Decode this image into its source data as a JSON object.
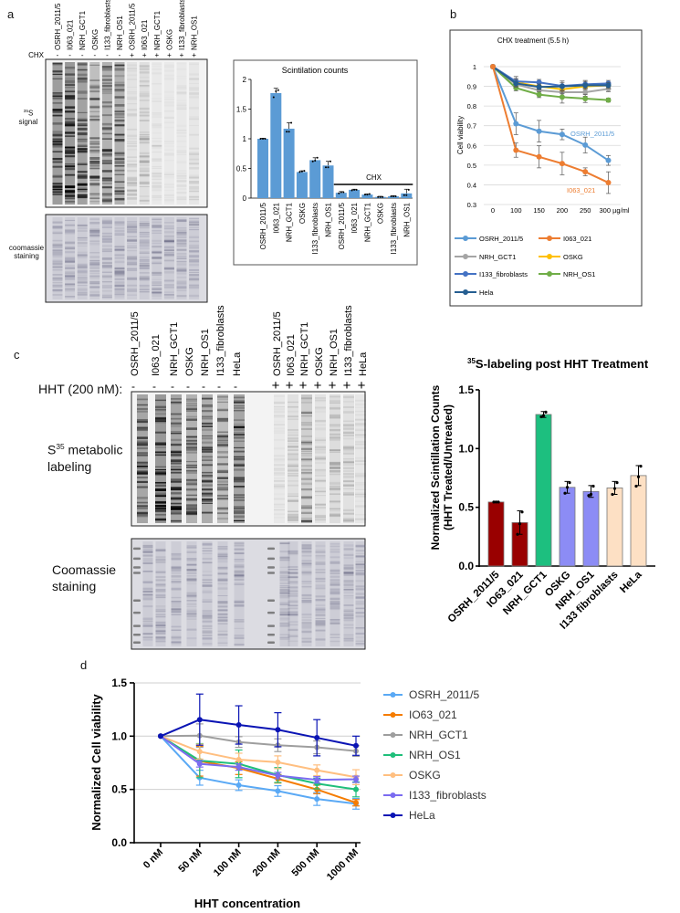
{
  "panel_labels": {
    "a": "a",
    "b": "b",
    "c": "c",
    "d": "d"
  },
  "panel_a": {
    "gel": {
      "lanes": [
        "OSRH_2011/5",
        "I063_021",
        "NRH_GCT1",
        "OSKG",
        "I133_fibroblasts",
        "NRH_OS1",
        "OSRH_2011/5",
        "I063_021",
        "NRH_GCT1",
        "OSKG",
        "I133_fibroblasts",
        "NRH_OS1"
      ],
      "treatment_label": "CHX",
      "treatment_signs": [
        "-",
        "-",
        "-",
        "-",
        "-",
        "-",
        "+",
        "+",
        "+",
        "+",
        "+",
        "+"
      ],
      "lane_signal_intensity": [
        0.95,
        1,
        0.9,
        0.55,
        0.7,
        0.7,
        0.12,
        0.18,
        0.06,
        0.04,
        0.05,
        0.08
      ],
      "signal_label_sup": "35",
      "signal_label_main": "S",
      "signal_label_sub": "signal",
      "staining_label_1": "coomassie",
      "staining_label_2": "staining"
    }
  },
  "panel_c": {
    "gel": {
      "treatment_label": "HHT (200 nM):",
      "lanes": [
        "OSRH_2011/5",
        "I063_021",
        "NRH_GCT1",
        "OSKG",
        "NRH_OS1",
        "I133_fibroblasts",
        "HeLa",
        "OSRH_2011/5",
        "I063_021",
        "NRH_GCT1",
        "OSKG",
        "NRH_OS1",
        "I133_fibroblasts",
        "HeLa"
      ],
      "treatment_signs": [
        "-",
        "-",
        "-",
        "-",
        "-",
        "-",
        "-",
        "+",
        "+",
        "+",
        "+",
        "+",
        "+",
        "+"
      ],
      "lane_signal_intensity": [
        0.85,
        1,
        0.85,
        0.7,
        0.75,
        0.55,
        0.85,
        0.06,
        0.15,
        0.35,
        0.12,
        0.2,
        0.15,
        0.08
      ],
      "signal_label_main": "S",
      "signal_label_sup": "35",
      "signal_label_rest": " metabolic",
      "signal_label_line2": "labeling",
      "staining_label_1": "Coomassie",
      "staining_label_2": "staining"
    }
  },
  "chart_data": [
    {
      "id": "a",
      "type": "bar",
      "title": "Scintilation counts",
      "categories": [
        "OSRH_2011/5",
        "I063_021",
        "NRH_GCT1",
        "OSKG",
        "I133_fibroblasts",
        "NRH_OS1",
        "OSRH_2011/5",
        "I063_021",
        "NRH_GCT1",
        "OSKG",
        "I133_fibroblasts",
        "NRH_OS1"
      ],
      "values": [
        1.0,
        1.77,
        1.17,
        0.44,
        0.64,
        0.55,
        0.09,
        0.14,
        0.06,
        0.02,
        0.03,
        0.08
      ],
      "errors": [
        0.01,
        0.08,
        0.1,
        0.02,
        0.04,
        0.07,
        0.02,
        0.01,
        0.01,
        0.01,
        0.01,
        0.07
      ],
      "points": [
        [
          1,
          1,
          1
        ],
        [
          1.7,
          1.8,
          1.82
        ],
        [
          1.12,
          1.12,
          1.27
        ],
        [
          0.44,
          0.45,
          0.46
        ],
        [
          0.62,
          0.63,
          0.68
        ],
        [
          0.52,
          0.52,
          0.62
        ],
        [
          0.08,
          0.1,
          0.1
        ],
        [
          0.13,
          0.14,
          0.14
        ],
        [
          0.06,
          0.06,
          0.07
        ],
        [
          0.02,
          0.02,
          0.02
        ],
        [
          0.03,
          0.03,
          0.03
        ],
        [
          0.05,
          0.05,
          0.14
        ]
      ],
      "group_annotation": {
        "label": "CHX",
        "from_index": 6,
        "to_index": 11
      },
      "ylim": [
        0,
        2
      ],
      "yticks": [
        "0",
        "0.5",
        "1",
        "1.5",
        "2"
      ],
      "bar_color": "#5b9bd5"
    },
    {
      "id": "b",
      "type": "line",
      "title": "CHX treatment (5.5 h)",
      "ylabel": "Cell viability",
      "x": [
        "0",
        "100",
        "150",
        "200",
        "250",
        "300 µg/ml"
      ],
      "ylim": [
        0.3,
        1
      ],
      "yticks": [
        "0.3",
        "0.4",
        "0.5",
        "0.6",
        "0.7",
        "0.8",
        "0.9",
        "1"
      ],
      "series": [
        {
          "name": "OSRH_2011/5",
          "color": "#5b9bd5",
          "values": [
            1,
            0.71,
            0.672,
            0.656,
            0.602,
            0.524
          ],
          "errors": [
            0,
            0.055,
            0.055,
            0.027,
            0.04,
            0.025
          ]
        },
        {
          "name": "I063_021",
          "color": "#ed7d31",
          "values": [
            1,
            0.576,
            0.542,
            0.508,
            0.466,
            0.411
          ],
          "errors": [
            0,
            0.036,
            0.056,
            0.057,
            0.02,
            0.055
          ]
        },
        {
          "name": "NRH_GCT1",
          "color": "#a5a5a5",
          "values": [
            1,
            0.91,
            0.88,
            0.87,
            0.87,
            0.887
          ],
          "errors": [
            0,
            0.02,
            0.015,
            0.02,
            0.02,
            0.015
          ]
        },
        {
          "name": "OSKG",
          "color": "#ffc000",
          "values": [
            1,
            0.92,
            0.9,
            0.885,
            0.9,
            0.905
          ],
          "errors": [
            0,
            0.02,
            0.015,
            0.02,
            0.015,
            0.015
          ]
        },
        {
          "name": "I133_fibroblasts",
          "color": "#4472c4",
          "values": [
            1,
            0.925,
            0.92,
            0.902,
            0.91,
            0.915
          ],
          "errors": [
            0,
            0.025,
            0.015,
            0.025,
            0.02,
            0.015
          ]
        },
        {
          "name": "NRH_OS1",
          "color": "#70ad47",
          "values": [
            1,
            0.892,
            0.858,
            0.845,
            0.838,
            0.83
          ],
          "errors": [
            0,
            0.015,
            0.015,
            0.03,
            0.02,
            0.01
          ]
        },
        {
          "name": "Hela",
          "color": "#255e91",
          "values": [
            1,
            0.915,
            0.897,
            0.9,
            0.905,
            0.905
          ],
          "errors": [
            0,
            0.02,
            0.015,
            0.02,
            0.02,
            0.015
          ]
        }
      ],
      "annotations": [
        {
          "text": "OSRH_2011/5",
          "color": "#5b9bd5"
        },
        {
          "text": "I063_021",
          "color": "#ed7d31"
        }
      ],
      "legend": "bottom"
    },
    {
      "id": "c",
      "type": "bar",
      "title_sup": "35",
      "title": "S-labeling post HHT Treatment",
      "ylabel_line1": "Normalized Scintillation Counts",
      "ylabel_line2": "(HHT Treated/Untreated)",
      "categories": [
        "OSRH_2011/5",
        "IO63_021",
        "NRH_GCT1",
        "OSKG",
        "NRH_OS1",
        "I133 fibroblasts",
        "HeLa"
      ],
      "values": [
        0.545,
        0.37,
        1.29,
        0.67,
        0.635,
        0.665,
        0.77
      ],
      "errors": [
        0.005,
        0.1,
        0.025,
        0.05,
        0.05,
        0.055,
        0.085
      ],
      "points": [
        [
          0.545,
          0.545,
          0.545
        ],
        [
          0.27,
          0.36,
          0.46
        ],
        [
          1.27,
          1.28,
          1.31
        ],
        [
          0.62,
          0.67,
          0.71
        ],
        [
          0.6,
          0.61,
          0.68
        ],
        [
          0.61,
          0.66,
          0.71
        ],
        [
          0.68,
          0.76,
          0.85
        ]
      ],
      "colors": [
        "#990000",
        "#990000",
        "#1dbf7f",
        "#8c8cf5",
        "#8c8cf5",
        "#fde0c4",
        "#fde0c4"
      ],
      "ylim": [
        0,
        1.5
      ],
      "yticks": [
        "0.0",
        "0.5",
        "1.0",
        "1.5"
      ]
    },
    {
      "id": "d",
      "type": "line",
      "ylabel": "Normalized Cell viability",
      "xlabel": "HHT concentration",
      "x": [
        "0 nM",
        "50 nM",
        "100 nM",
        "200 nM",
        "500 nM",
        "1000 nM"
      ],
      "ylim": [
        0,
        1.5
      ],
      "yticks": [
        "0.0",
        "0.5",
        "1.0",
        "1.5"
      ],
      "grid": true,
      "series": [
        {
          "name": "OSRH_2011/5",
          "color": "#5aa9f5",
          "values": [
            1,
            0.61,
            0.54,
            0.485,
            0.41,
            0.365
          ],
          "errors": [
            0,
            0.07,
            0.05,
            0.05,
            0.06,
            0.05
          ]
        },
        {
          "name": "IO63_021",
          "color": "#f57c00",
          "values": [
            1,
            0.765,
            0.7,
            0.6,
            0.5,
            0.375
          ],
          "errors": [
            0,
            0.14,
            0.06,
            0.04,
            0.04,
            0.03
          ]
        },
        {
          "name": "NRH_GCT1",
          "color": "#9e9e9e",
          "values": [
            1,
            1.005,
            0.945,
            0.915,
            0.895,
            0.86
          ],
          "errors": [
            0,
            0.11,
            0.05,
            0.06,
            0.06,
            0.05
          ]
        },
        {
          "name": "NRH_OS1",
          "color": "#1fbf7a",
          "values": [
            1,
            0.77,
            0.74,
            0.635,
            0.555,
            0.5
          ],
          "errors": [
            0,
            0.16,
            0.13,
            0.07,
            0.05,
            0.07
          ]
        },
        {
          "name": "OSKG",
          "color": "#ffbf80",
          "values": [
            1,
            0.855,
            0.78,
            0.755,
            0.68,
            0.615
          ],
          "errors": [
            0,
            0.07,
            0.06,
            0.06,
            0.05,
            0.07
          ]
        },
        {
          "name": "I133_fibroblasts",
          "color": "#7b6cf0",
          "values": [
            1,
            0.74,
            0.71,
            0.63,
            0.59,
            0.595
          ],
          "errors": [
            0,
            0.03,
            0.03,
            0.03,
            0.03,
            0.03
          ]
        },
        {
          "name": "HeLa",
          "color": "#0a14b4",
          "values": [
            1,
            1.155,
            1.105,
            1.06,
            0.985,
            0.91
          ],
          "errors": [
            0,
            0.24,
            0.18,
            0.16,
            0.17,
            0.09
          ]
        }
      ],
      "legend": "right"
    }
  ]
}
